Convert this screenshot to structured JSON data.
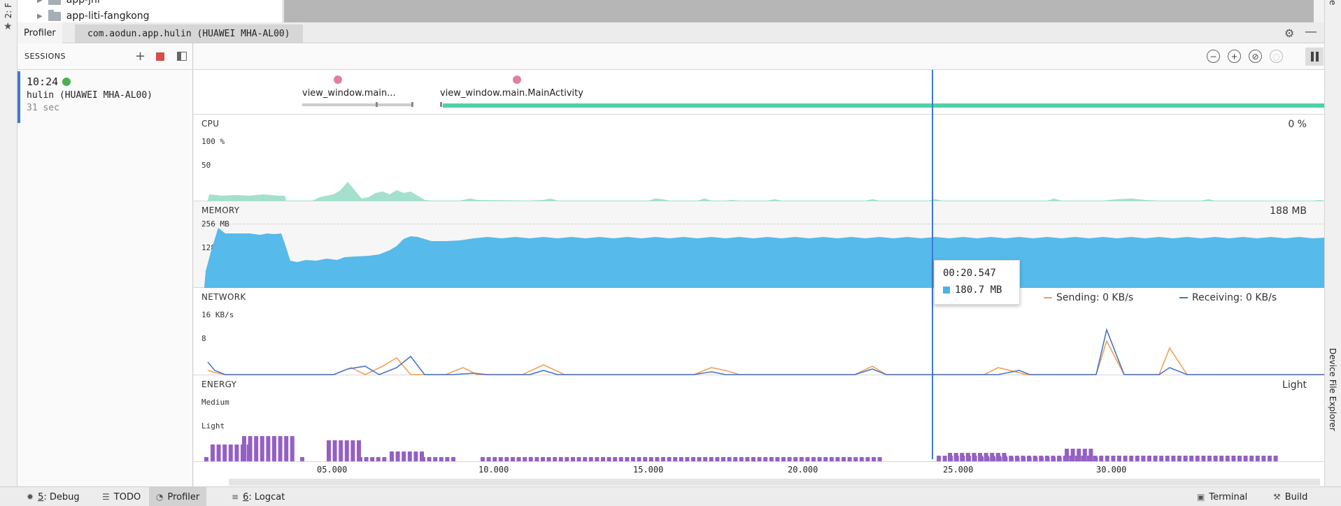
{
  "left_stripe": {
    "text": "2: F",
    "star": "★"
  },
  "right_stripe": {
    "top_text": "e",
    "device_file_explorer": "Device File Explorer"
  },
  "tree": {
    "row1": "app-jni",
    "row2": "app-liti-fangkong"
  },
  "tabs": {
    "profiler": "Profiler",
    "device": "com.aodun.app.hulin (HUAWEI MHA-AL00)"
  },
  "sessions": {
    "header": "SESSIONS",
    "item": {
      "time": "10:24",
      "name": "hulin (HUAWEI MHA-AL00)",
      "duration": "31 sec"
    }
  },
  "events": [
    {
      "label": "view_window.main..."
    },
    {
      "label": "view_window.main.MainActivity"
    }
  ],
  "lanes": {
    "cpu": {
      "label": "CPU",
      "value": "0 %",
      "axis_top": "100 %",
      "axis_mid": "50"
    },
    "memory": {
      "label": "MEMORY",
      "value": "188 MB",
      "axis_top": "256 MB",
      "axis_mid": "128"
    },
    "network": {
      "label": "NETWORK",
      "axis_top": "16 KB/s",
      "axis_mid": "8",
      "sending": "Sending: 0 KB/s",
      "receiving": "Receiving: 0 KB/s"
    },
    "energy": {
      "label": "ENERGY",
      "value": "Light",
      "axis_top": "Medium",
      "axis_mid": "Light"
    }
  },
  "tooltip": {
    "time": "00:20.547",
    "value": "180.7 MB"
  },
  "time_ticks": [
    "05.000",
    "10.000",
    "15.000",
    "20.000",
    "25.000",
    "30.000"
  ],
  "colors": {
    "cpu": "#a5e0cf",
    "memory": "#56baea",
    "sending": "#f2a055",
    "receiving": "#4a74c9",
    "energy": "#9460c4",
    "cursor": "#3d79d6",
    "event_dot": "#e07fa6",
    "activity_bar": "#4fd1a4"
  },
  "statusbar": {
    "debug_num": "5",
    "debug": ": Debug",
    "todo": "TODO",
    "profiler": "Profiler",
    "logcat_num": "6",
    "logcat": ": Logcat",
    "terminal": "Terminal",
    "build": "Build"
  }
}
